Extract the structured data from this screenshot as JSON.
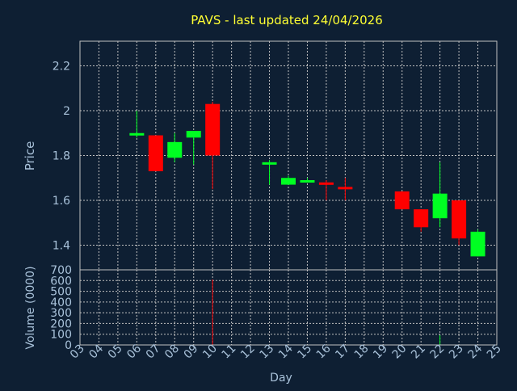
{
  "theme": {
    "background": "#0e1f33",
    "axis_text": "#a9c2da",
    "title_color": "#ffff33",
    "grid_color": "#c0c0c0",
    "up_color": "#00ff22",
    "down_color": "#ff0000"
  },
  "chart_data": [
    {
      "type": "candlestick",
      "title": "PAVS - last updated 24/04/2026",
      "ylabel": "Price",
      "ylim": [
        1.29,
        2.31
      ],
      "yticks": [
        "1.4",
        "1.6",
        "1.8",
        "2",
        "2.2"
      ],
      "ytick_values": [
        1.4,
        1.6,
        1.8,
        2.0,
        2.2
      ],
      "grid": true,
      "candles": [
        {
          "day": "06",
          "open": 1.89,
          "high": 2.0,
          "low": 1.88,
          "close": 1.9
        },
        {
          "day": "07",
          "open": 1.89,
          "high": 1.89,
          "low": 1.73,
          "close": 1.73
        },
        {
          "day": "08",
          "open": 1.79,
          "high": 1.9,
          "low": 1.77,
          "close": 1.86
        },
        {
          "day": "09",
          "open": 1.88,
          "high": 1.91,
          "low": 1.76,
          "close": 1.91
        },
        {
          "day": "10",
          "open": 2.03,
          "high": 2.04,
          "low": 1.65,
          "close": 1.8
        },
        {
          "day": "13",
          "open": 1.76,
          "high": 1.78,
          "low": 1.67,
          "close": 1.77
        },
        {
          "day": "14",
          "open": 1.67,
          "high": 1.71,
          "low": 1.67,
          "close": 1.7
        },
        {
          "day": "15",
          "open": 1.68,
          "high": 1.7,
          "low": 1.68,
          "close": 1.69
        },
        {
          "day": "16",
          "open": 1.68,
          "high": 1.69,
          "low": 1.6,
          "close": 1.67
        },
        {
          "day": "17",
          "open": 1.66,
          "high": 1.7,
          "low": 1.6,
          "close": 1.65
        },
        {
          "day": "20",
          "open": 1.64,
          "high": 1.64,
          "low": 1.56,
          "close": 1.56
        },
        {
          "day": "21",
          "open": 1.56,
          "high": 1.56,
          "low": 1.46,
          "close": 1.48
        },
        {
          "day": "22",
          "open": 1.52,
          "high": 1.77,
          "low": 1.48,
          "close": 1.63
        },
        {
          "day": "23",
          "open": 1.6,
          "high": 1.6,
          "low": 1.4,
          "close": 1.43
        },
        {
          "day": "24",
          "open": 1.35,
          "high": 1.47,
          "low": 1.35,
          "close": 1.46
        }
      ]
    },
    {
      "type": "bar",
      "ylabel": "Volume (0000)",
      "xlabel": "Day",
      "ylim": [
        0,
        700
      ],
      "yticks": [
        "0",
        "100",
        "200",
        "300",
        "400",
        "500",
        "600",
        "700"
      ],
      "ytick_values": [
        0,
        100,
        200,
        300,
        400,
        500,
        600,
        700
      ],
      "x_categories": [
        "03",
        "04",
        "05",
        "06",
        "07",
        "08",
        "09",
        "10",
        "11",
        "12",
        "13",
        "14",
        "15",
        "16",
        "17",
        "18",
        "19",
        "20",
        "21",
        "22",
        "23",
        "24",
        "25"
      ],
      "volumes": [
        {
          "day": "10",
          "value": 610,
          "color": "down"
        },
        {
          "day": "22",
          "value": 90,
          "color": "up"
        }
      ]
    }
  ]
}
